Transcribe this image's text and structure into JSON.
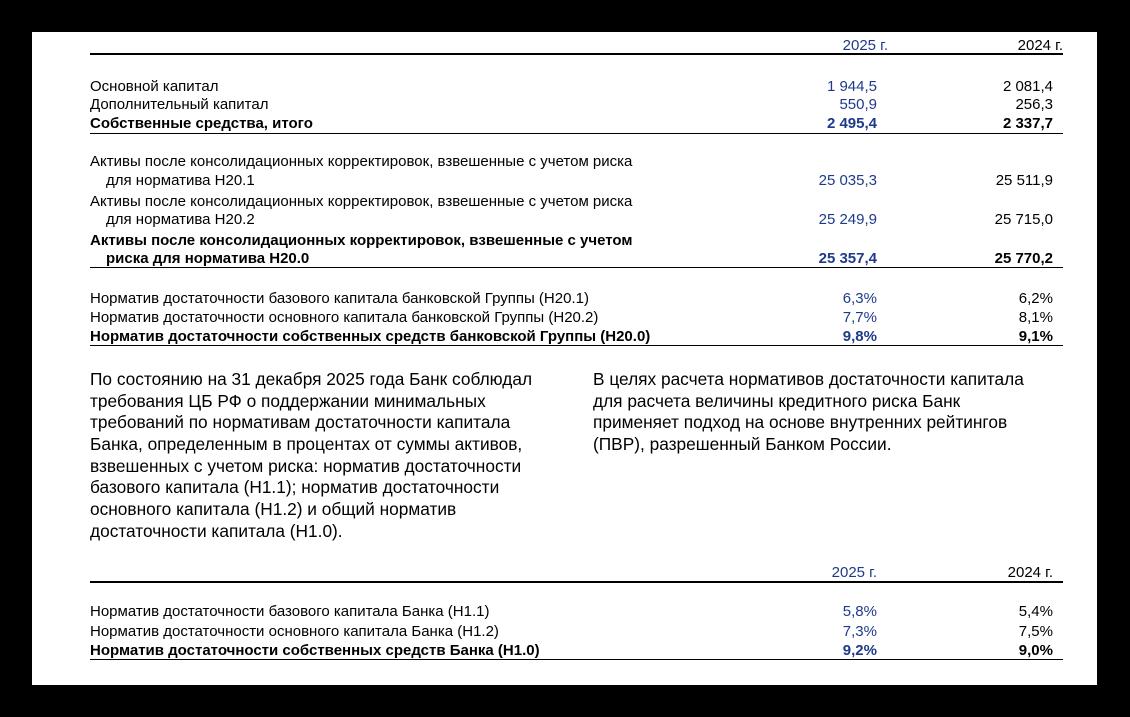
{
  "table1": {
    "header": {
      "col1": "2025 г.",
      "col2": "2024 г."
    },
    "capital": [
      {
        "label": "Основной капитал",
        "v2025": "1 944,5",
        "v2024": "2 081,4"
      },
      {
        "label": "Дополнительный капитал",
        "v2025": "550,9",
        "v2024": "256,3"
      },
      {
        "label": "Собственные средства, итого",
        "v2025": "2 495,4",
        "v2024": "2 337,7"
      }
    ],
    "assets": [
      {
        "label1": "Активы после консолидационных корректировок, взвешенные с учетом риска",
        "label2": "для норматива Н20.1",
        "v2025": "25 035,3",
        "v2024": "25 511,9"
      },
      {
        "label1": "Активы после консолидационных корректировок, взвешенные с учетом риска",
        "label2": "для норматива Н20.2",
        "v2025": "25 249,9",
        "v2024": "25 715,0"
      },
      {
        "label1": "Активы после консолидационных корректировок, взвешенные с учетом",
        "label2": "риска для норматива Н20.0",
        "v2025": "25 357,4",
        "v2024": "25 770,2"
      }
    ],
    "ratios": [
      {
        "label": "Норматив достаточности базового капитала банковской Группы (Н20.1)",
        "v2025": "6,3%",
        "v2024": "6,2%"
      },
      {
        "label": "Норматив достаточности основного капитала банковской Группы (Н20.2)",
        "v2025": "7,7%",
        "v2024": "8,1%"
      },
      {
        "label": "Норматив достаточности собственных средств банковской Группы (Н20.0)",
        "v2025": "9,8%",
        "v2024": "9,1%"
      }
    ]
  },
  "paragraph_left": [
    "По состоянию на 31 декабря 2025 года Банк соблюдал",
    "требования ЦБ РФ о поддержании минимальных",
    "требований по нормативам достаточности капитала",
    "Банка, определенным в процентах от суммы активов,",
    "взвешенных с учетом риска: норматив достаточности",
    "базового капитала (Н1.1); норматив достаточности",
    "основного капитала (Н1.2) и общий норматив",
    "достаточности капитала (Н1.0)."
  ],
  "paragraph_right": [
    "В целях расчета нормативов достаточности капитала",
    "для расчета величины кредитного риска Банк",
    "применяет подход на основе внутренних рейтингов",
    "(ПВР), разрешенный Банком России."
  ],
  "table2": {
    "header": {
      "col1": "2025 г.",
      "col2": "2024 г."
    },
    "ratios": [
      {
        "label": "Норматив достаточности базового капитала Банка (Н1.1)",
        "v2025": "5,8%",
        "v2024": "5,4%"
      },
      {
        "label": "Норматив достаточности основного капитала Банка (Н1.2)",
        "v2025": "7,3%",
        "v2024": "7,5%"
      },
      {
        "label": "Норматив достаточности собственных средств Банка (Н1.0)",
        "v2025": "9,2%",
        "v2024": "9,0%"
      }
    ]
  },
  "colors": {
    "current_year": "#1f3a8a",
    "text": "#000000"
  }
}
